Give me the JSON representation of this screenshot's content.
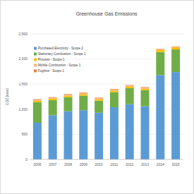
{
  "chart_data": {
    "type": "bar",
    "title": "Greenhouse Gas Emissions",
    "y_label": "CO2 (tons)",
    "stacked": true,
    "grid": true,
    "legend": "upper-left",
    "categories": [
      "2006",
      "2007",
      "2008",
      "2009",
      "2010",
      "2011",
      "2012",
      "2013",
      "2014",
      "2015"
    ],
    "series": [
      {
        "name": "Purchased Electricity - Scope 2",
        "color": "#5b9bd5",
        "values": [
          730,
          880,
          960,
          980,
          930,
          1040,
          1100,
          1060,
          1680,
          1740
        ]
      },
      {
        "name": "Stationary Combustion - Scope 1",
        "color": "#70ad47",
        "values": [
          410,
          300,
          280,
          290,
          240,
          300,
          320,
          320,
          460,
          450
        ]
      },
      {
        "name": "Process - Scope 1",
        "color": "#ffc000",
        "values": [
          30,
          30,
          30,
          30,
          30,
          30,
          30,
          30,
          40,
          40
        ]
      },
      {
        "name": "Mobile Combustion - Scope 1",
        "color": "#f4b183",
        "values": [
          20,
          20,
          20,
          20,
          20,
          20,
          20,
          20,
          10,
          10
        ]
      },
      {
        "name": "Fugitive - Scope 1",
        "color": "#ed7d31",
        "values": [
          10,
          10,
          10,
          10,
          10,
          10,
          10,
          10,
          10,
          10
        ]
      }
    ],
    "ylim": [
      0,
      2500
    ],
    "yticks": [
      0,
      {
        "value": 500,
        "label": "500"
      },
      {
        "value": 1000,
        "label": "1,000"
      },
      {
        "value": 1500,
        "label": "1,500"
      },
      {
        "value": 2000,
        "label": "2,000"
      },
      {
        "value": 2500,
        "label": "2,500"
      }
    ]
  }
}
